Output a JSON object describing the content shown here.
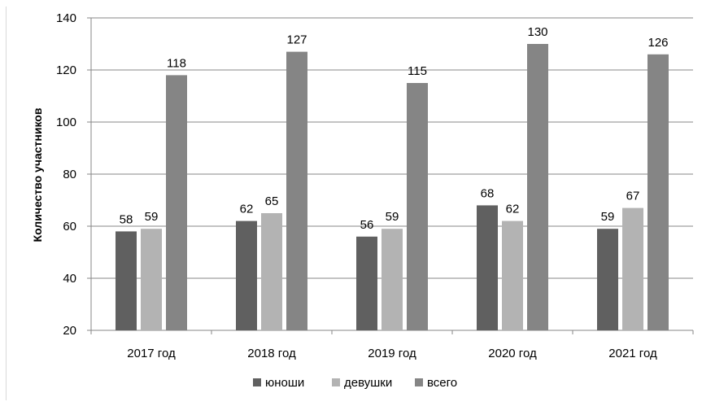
{
  "chart_data": {
    "type": "bar",
    "title": "",
    "xlabel": "",
    "ylabel": "Количество участников",
    "categories": [
      "2017 год",
      "2018 год",
      "2019 год",
      "2020 год",
      "2021 год"
    ],
    "series": [
      {
        "name": "юноши",
        "values": [
          58,
          62,
          56,
          68,
          59
        ],
        "color": "#606060"
      },
      {
        "name": "девушки",
        "values": [
          59,
          65,
          59,
          62,
          67
        ],
        "color": "#b3b3b3"
      },
      {
        "name": "всего",
        "values": [
          118,
          127,
          115,
          130,
          126
        ],
        "color": "#858585"
      }
    ],
    "ylim": [
      20,
      140
    ],
    "yticks": [
      20,
      40,
      60,
      80,
      100,
      120,
      140
    ],
    "grid": true,
    "legend_position": "bottom",
    "data_labels": true
  }
}
